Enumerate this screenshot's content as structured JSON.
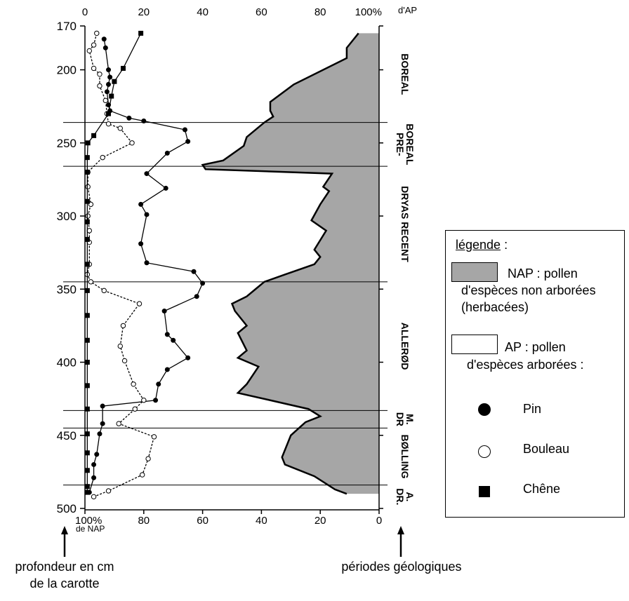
{
  "chart_data": {
    "type": "area",
    "top_axis": {
      "ticks": [
        "0",
        "20",
        "40",
        "60",
        "80",
        "100%"
      ],
      "unit": "d'AP"
    },
    "bottom_axis": {
      "ticks": [
        "100%",
        "80",
        "60",
        "40",
        "20",
        "0"
      ],
      "unit": "de NAP"
    },
    "depth_axis": {
      "ticks": [
        "170",
        "200",
        "250",
        "300",
        "350",
        "400",
        "450",
        "500"
      ],
      "range": [
        170,
        500
      ]
    },
    "periods": [
      {
        "label": "BOREAL",
        "top": 170,
        "bottom": 236
      },
      {
        "label": "PRE-\nBOREAL",
        "top": 236,
        "bottom": 266
      },
      {
        "label": "DRYAS RECENT",
        "top": 266,
        "bottom": 345
      },
      {
        "label": "ALLERØD",
        "top": 345,
        "bottom": 433
      },
      {
        "label": "DR\nM.",
        "top": 433,
        "bottom": 445
      },
      {
        "label": "BØLLING",
        "top": 445,
        "bottom": 484
      },
      {
        "label": "DR.\nA.",
        "top": 484,
        "bottom": 500
      }
    ],
    "nap_boundary": [
      [
        175,
        93
      ],
      [
        180,
        91
      ],
      [
        185,
        89
      ],
      [
        192,
        89
      ],
      [
        210,
        71
      ],
      [
        222,
        63
      ],
      [
        228,
        63
      ],
      [
        232,
        64
      ],
      [
        236,
        61
      ],
      [
        246,
        55
      ],
      [
        252,
        54
      ],
      [
        262,
        47
      ],
      [
        265,
        40
      ],
      [
        268,
        41
      ],
      [
        271,
        84
      ],
      [
        280,
        81
      ],
      [
        283,
        83
      ],
      [
        292,
        80
      ],
      [
        303,
        77
      ],
      [
        310,
        82
      ],
      [
        323,
        78
      ],
      [
        328,
        80
      ],
      [
        333,
        78
      ],
      [
        340,
        68
      ],
      [
        345,
        61
      ],
      [
        350,
        58
      ],
      [
        355,
        55
      ],
      [
        360,
        50
      ],
      [
        365,
        51
      ],
      [
        375,
        55
      ],
      [
        380,
        52
      ],
      [
        392,
        55
      ],
      [
        397,
        52
      ],
      [
        403,
        59
      ],
      [
        415,
        55
      ],
      [
        421,
        52
      ],
      [
        426,
        63
      ],
      [
        432,
        76
      ],
      [
        437,
        80
      ],
      [
        441,
        75
      ],
      [
        450,
        70
      ],
      [
        455,
        69
      ],
      [
        465,
        67
      ],
      [
        470,
        68
      ],
      [
        478,
        78
      ],
      [
        487,
        85
      ],
      [
        490,
        89
      ]
    ],
    "series": [
      {
        "name": "Pin",
        "points": [
          [
            179,
            6.5
          ],
          [
            185,
            7
          ],
          [
            200,
            8
          ],
          [
            205,
            8.5
          ],
          [
            210,
            8
          ],
          [
            215,
            7.5
          ],
          [
            224,
            8
          ],
          [
            228,
            8.5
          ],
          [
            233,
            15
          ],
          [
            235,
            20
          ],
          [
            241,
            34
          ],
          [
            249,
            35
          ],
          [
            257,
            28
          ],
          [
            271,
            21
          ],
          [
            281,
            27.5
          ],
          [
            292,
            19
          ],
          [
            299,
            21
          ],
          [
            319,
            19
          ],
          [
            332,
            21
          ],
          [
            338,
            37
          ],
          [
            346,
            40
          ],
          [
            355,
            38
          ],
          [
            365,
            27
          ],
          [
            381,
            28
          ],
          [
            385,
            30
          ],
          [
            397,
            35
          ],
          [
            405,
            28
          ],
          [
            415,
            25
          ],
          [
            426,
            24
          ],
          [
            430,
            6
          ],
          [
            442,
            6
          ],
          [
            449,
            5
          ],
          [
            463,
            4
          ],
          [
            470,
            3
          ],
          [
            479,
            3
          ],
          [
            489,
            1.5
          ]
        ]
      },
      {
        "name": "Bouleau",
        "points": [
          [
            175,
            4
          ],
          [
            183,
            3
          ],
          [
            187,
            1.5
          ],
          [
            199,
            3
          ],
          [
            203,
            5
          ],
          [
            211,
            5
          ],
          [
            221,
            7
          ],
          [
            230,
            7.5
          ],
          [
            237,
            8
          ],
          [
            240,
            12
          ],
          [
            250,
            16
          ],
          [
            260,
            6
          ],
          [
            270,
            1
          ],
          [
            280,
            1
          ],
          [
            292,
            2
          ],
          [
            300,
            1
          ],
          [
            310,
            1.5
          ],
          [
            318,
            1.5
          ],
          [
            333,
            1.5
          ],
          [
            340,
            0.8
          ],
          [
            345,
            2
          ],
          [
            351,
            6.5
          ],
          [
            360,
            18.5
          ],
          [
            375,
            13
          ],
          [
            389,
            12
          ],
          [
            399,
            13.5
          ],
          [
            415,
            16.5
          ],
          [
            426,
            20
          ],
          [
            432,
            17
          ],
          [
            442,
            11.5
          ],
          [
            451,
            23.5
          ],
          [
            466,
            21.5
          ],
          [
            477,
            19.5
          ],
          [
            488,
            8
          ],
          [
            492,
            3
          ]
        ]
      },
      {
        "name": "Chêne",
        "points": [
          [
            175,
            19
          ],
          [
            199,
            13
          ],
          [
            208,
            10
          ],
          [
            218,
            9
          ],
          [
            230,
            8
          ],
          [
            245,
            3
          ],
          [
            250,
            1
          ],
          [
            260,
            0.8
          ],
          [
            270,
            0.8
          ],
          [
            290,
            0.8
          ],
          [
            304,
            0.8
          ],
          [
            316,
            0.8
          ],
          [
            333,
            0.8
          ],
          [
            351,
            0.8
          ],
          [
            368,
            0.8
          ],
          [
            385,
            0.8
          ],
          [
            400,
            0.8
          ],
          [
            416,
            0.8
          ],
          [
            432,
            0.8
          ],
          [
            449,
            0.8
          ],
          [
            462,
            0.8
          ],
          [
            474,
            0.8
          ],
          [
            485,
            0.8
          ],
          [
            489,
            0.8
          ]
        ]
      }
    ]
  },
  "legend": {
    "title": "légende",
    "colon": " :",
    "nap_line1": "NAP : pollen",
    "nap_line2": "d'espèces non arborées",
    "nap_line3": "(herbacées)",
    "ap_line1": "AP : pollen",
    "ap_line2": "d'espèces arborées :",
    "pin": "Pin",
    "bouleau": "Bouleau",
    "chene": "Chêne"
  },
  "annotations": {
    "depth_line1": "profondeur en cm",
    "depth_line2": "de la carotte",
    "periods_label": "périodes géologiques"
  },
  "colors": {
    "nap_fill": "#a6a6a6",
    "line": "#000000"
  }
}
